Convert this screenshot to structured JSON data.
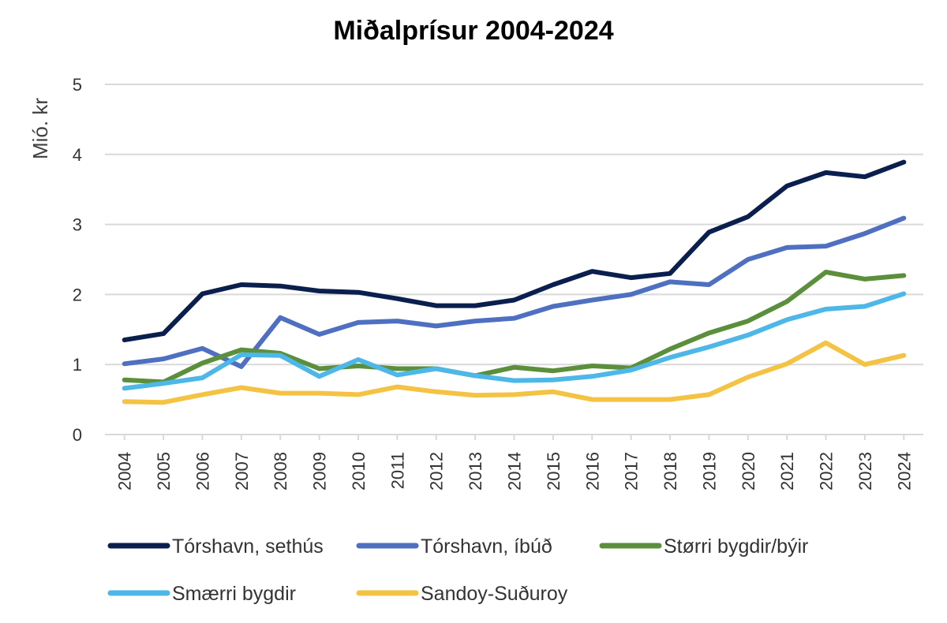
{
  "chart_data": {
    "type": "line",
    "title": "Miðalprísur 2004-2024",
    "ylabel": "Mió. kr",
    "xlabel": "",
    "ylim": [
      0,
      5
    ],
    "yticks": [
      0,
      1,
      2,
      3,
      4,
      5
    ],
    "grid": true,
    "legend_position": "bottom",
    "categories": [
      "2004",
      "2005",
      "2006",
      "2007",
      "2008",
      "2009",
      "2010",
      "2011",
      "2012",
      "2013",
      "2014",
      "2015",
      "2016",
      "2017",
      "2018",
      "2019",
      "2020",
      "2021",
      "2022",
      "2023",
      "2024"
    ],
    "series": [
      {
        "name": "Tórshavn, sethús",
        "color": "#0b1f4f",
        "values": [
          1.35,
          1.44,
          2.01,
          2.14,
          2.12,
          2.05,
          2.03,
          1.94,
          1.84,
          1.84,
          1.92,
          2.14,
          2.33,
          2.24,
          2.3,
          2.89,
          3.11,
          3.55,
          3.74,
          3.68,
          3.89
        ]
      },
      {
        "name": "Tórshavn, íbúð",
        "color": "#4f6fc0",
        "values": [
          1.01,
          1.08,
          1.23,
          0.97,
          1.67,
          1.43,
          1.6,
          1.62,
          1.55,
          1.62,
          1.66,
          1.83,
          1.92,
          2.0,
          2.18,
          2.14,
          2.5,
          2.67,
          2.69,
          2.87,
          3.09
        ]
      },
      {
        "name": "Størri bygdir/býir",
        "color": "#5b8f3c",
        "values": [
          0.78,
          0.75,
          1.02,
          1.21,
          1.16,
          0.94,
          0.98,
          0.94,
          0.94,
          0.84,
          0.96,
          0.91,
          0.98,
          0.95,
          1.22,
          1.45,
          1.62,
          1.9,
          2.32,
          2.22,
          2.27
        ]
      },
      {
        "name": "Smærri bygdir",
        "color": "#4db8e8",
        "values": [
          0.66,
          0.73,
          0.81,
          1.14,
          1.13,
          0.83,
          1.07,
          0.85,
          0.94,
          0.84,
          0.77,
          0.78,
          0.83,
          0.92,
          1.1,
          1.25,
          1.42,
          1.64,
          1.79,
          1.83,
          2.01
        ]
      },
      {
        "name": "Sandoy-Suðuroy",
        "color": "#f5c343",
        "values": [
          0.47,
          0.46,
          0.57,
          0.67,
          0.59,
          0.59,
          0.57,
          0.68,
          0.61,
          0.56,
          0.57,
          0.61,
          0.5,
          0.5,
          0.5,
          0.57,
          0.82,
          1.01,
          1.31,
          1.0,
          1.13
        ]
      }
    ]
  }
}
